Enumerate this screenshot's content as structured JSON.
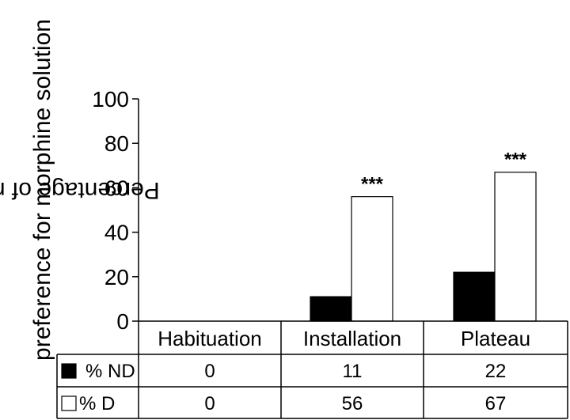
{
  "chart_data": {
    "type": "bar",
    "ylabel": [
      "Percentage of rats showing",
      "preference for morphine solution"
    ],
    "ylim": [
      0,
      100
    ],
    "yticks": [
      "0",
      "20",
      "40",
      "60",
      "80",
      "100"
    ],
    "categories": [
      "Habituation",
      "Installation",
      "Plateau"
    ],
    "series": [
      {
        "name": "% ND",
        "values": [
          0,
          11,
          22
        ],
        "color": "#000000"
      },
      {
        "name": "% D",
        "values": [
          0,
          56,
          67
        ],
        "color": "#ffffff"
      }
    ],
    "annotations": [
      "",
      "***",
      "***"
    ],
    "table": {
      "rows": [
        {
          "label": "% ND",
          "cells": [
            "0",
            "11",
            "22"
          ]
        },
        {
          "label": "% D",
          "cells": [
            "0",
            "56",
            "67"
          ]
        }
      ]
    }
  }
}
